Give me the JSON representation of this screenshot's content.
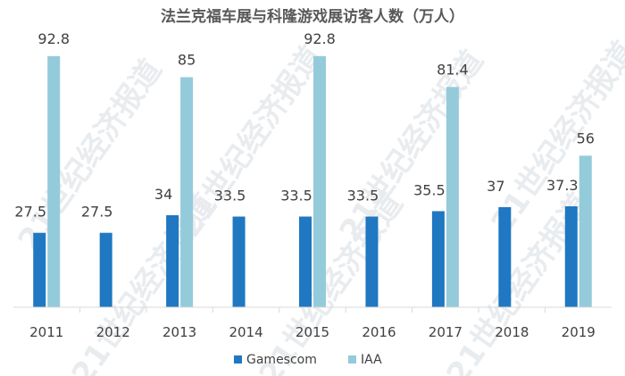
{
  "chart_data": {
    "type": "bar",
    "title": "法兰克福车展与科隆游戏展访客人数（万人）",
    "categories": [
      "2011",
      "2012",
      "2013",
      "2014",
      "2015",
      "2016",
      "2017",
      "2018",
      "2019"
    ],
    "series": [
      {
        "name": "Gamescom",
        "color": "#1f78c1",
        "values": [
          27.5,
          27.5,
          34,
          33.5,
          33.5,
          33.5,
          35.5,
          37,
          37.3
        ]
      },
      {
        "name": "IAA",
        "color": "#94cbdb",
        "values": [
          92.8,
          null,
          85,
          null,
          92.8,
          null,
          81.4,
          null,
          56
        ]
      }
    ],
    "ylim": [
      0,
      100
    ],
    "grid": false,
    "legend_position": "bottom-center"
  },
  "watermark": {
    "text": "21世纪经济报道"
  }
}
